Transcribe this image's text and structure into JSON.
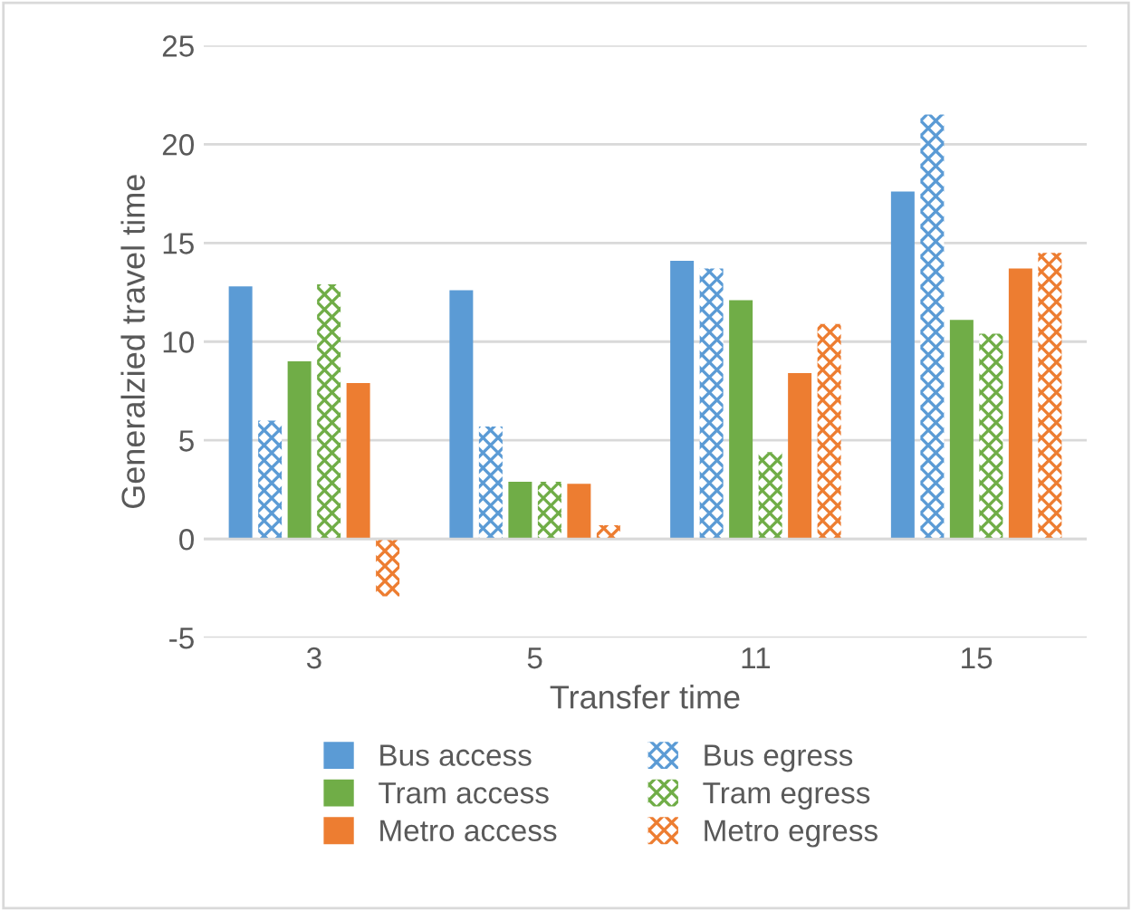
{
  "chart_data": {
    "type": "bar",
    "xlabel": "Transfer time",
    "ylabel": "Generalzied travel time",
    "categories": [
      "3",
      "5",
      "11",
      "15"
    ],
    "series": [
      {
        "name": "Bus access",
        "color": "#5b9bd5",
        "values": [
          12.8,
          12.6,
          14.1,
          17.6
        ]
      },
      {
        "name": "Bus egress",
        "color": "#5b9bd5",
        "values": [
          6.0,
          5.7,
          13.7,
          21.5
        ]
      },
      {
        "name": "Tram access",
        "color": "#70ad47",
        "values": [
          9.0,
          2.9,
          12.1,
          11.1
        ]
      },
      {
        "name": "Tram egress",
        "color": "#70ad47",
        "values": [
          12.9,
          2.9,
          4.4,
          10.4
        ]
      },
      {
        "name": "Metro access",
        "color": "#ed7d31",
        "values": [
          7.9,
          2.8,
          8.4,
          13.7
        ]
      },
      {
        "name": "Metro egress",
        "color": "#ed7d31",
        "values": [
          -2.9,
          0.7,
          10.9,
          14.5
        ]
      }
    ],
    "ylim": [
      -5,
      25
    ],
    "yticks": [
      -5,
      0,
      5,
      10,
      15,
      20,
      25
    ],
    "grid": "y",
    "legend": "bottom"
  }
}
